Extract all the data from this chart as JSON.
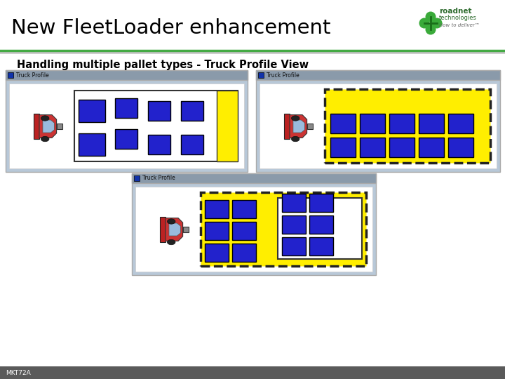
{
  "title": "New FleetLoader enhancement",
  "subtitle": "Handling multiple pallet types - Truck Profile View",
  "footer": "MKT72A",
  "bg_color": "#ffffff",
  "title_color": "#000000",
  "subtitle_color": "#000000",
  "footer_bg": "#5a5a5a",
  "footer_text_color": "#ffffff",
  "panel_bg": "#b8c8d8",
  "panel_inner_bg": "#ffffff",
  "panel_title_bg": "#8a9aaa",
  "pallet_color": "#2222cc",
  "pallet_outline": "#000000",
  "yellow_bg": "#ffee00",
  "yellow_outline": "#333333",
  "logo_green_dark": "#1a6e1a",
  "logo_green_light": "#3aaa3a",
  "logo_text_color": "#2e6b2e",
  "logo_tagline_color": "#666666"
}
